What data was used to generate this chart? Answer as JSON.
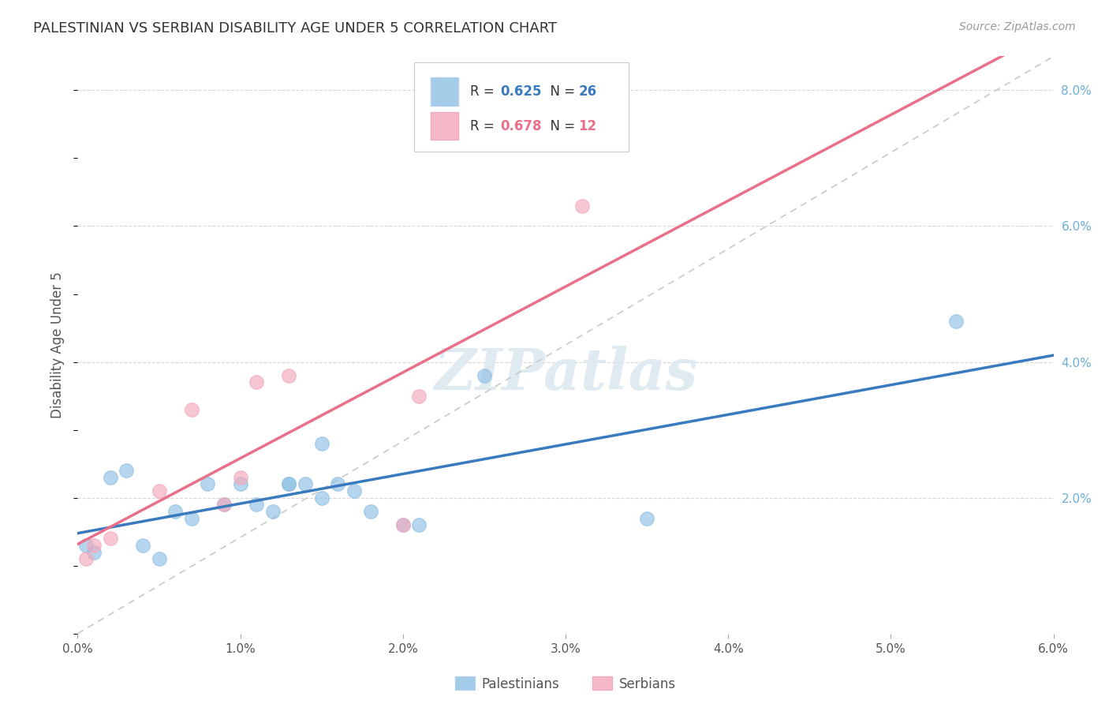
{
  "title": "PALESTINIAN VS SERBIAN DISABILITY AGE UNDER 5 CORRELATION CHART",
  "source": "Source: ZipAtlas.com",
  "ylabel": "Disability Age Under 5",
  "xlim": [
    0.0,
    0.06
  ],
  "ylim": [
    0.0,
    0.085
  ],
  "palestinian_color": "#8ec0e4",
  "serbian_color": "#f4a8bc",
  "blue_line_color": "#3a7abf",
  "pink_line_color": "#e8708a",
  "diagonal_color": "#c8c8c8",
  "R_palestinian": 0.625,
  "N_palestinian": 26,
  "R_serbian": 0.678,
  "N_serbian": 12,
  "palestinian_x": [
    0.0005,
    0.001,
    0.002,
    0.003,
    0.004,
    0.005,
    0.006,
    0.007,
    0.008,
    0.009,
    0.01,
    0.011,
    0.012,
    0.013,
    0.013,
    0.014,
    0.015,
    0.015,
    0.016,
    0.017,
    0.018,
    0.02,
    0.021,
    0.025,
    0.035,
    0.054
  ],
  "palestinian_y": [
    0.013,
    0.012,
    0.023,
    0.024,
    0.013,
    0.011,
    0.018,
    0.017,
    0.022,
    0.019,
    0.022,
    0.019,
    0.018,
    0.022,
    0.022,
    0.022,
    0.02,
    0.028,
    0.022,
    0.021,
    0.018,
    0.016,
    0.016,
    0.038,
    0.017,
    0.046
  ],
  "serbian_x": [
    0.0005,
    0.001,
    0.002,
    0.005,
    0.007,
    0.009,
    0.01,
    0.011,
    0.013,
    0.02,
    0.021,
    0.031
  ],
  "serbian_y": [
    0.011,
    0.013,
    0.014,
    0.021,
    0.033,
    0.019,
    0.023,
    0.037,
    0.038,
    0.016,
    0.035,
    0.063
  ],
  "background_color": "#ffffff",
  "grid_color": "#d8d8d8"
}
